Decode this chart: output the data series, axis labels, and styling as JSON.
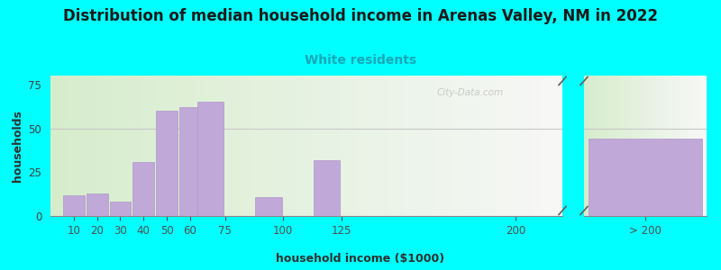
{
  "title": "Distribution of median household income in Arenas Valley, NM in 2022",
  "subtitle": "White residents",
  "xlabel": "household income ($1000)",
  "ylabel": "households",
  "background_color": "#00FFFF",
  "bar_color": "#c0a8d8",
  "bar_edge_color": "#b098c8",
  "title_fontsize": 12,
  "subtitle_fontsize": 10,
  "subtitle_color": "#18a8b8",
  "label_fontsize": 9,
  "tick_fontsize": 8.5,
  "ylim": [
    0,
    80
  ],
  "yticks": [
    0,
    25,
    50,
    75
  ],
  "categories": [
    "10",
    "20",
    "30",
    "40",
    "50",
    "60",
    "75",
    "100",
    "125",
    "200",
    "> 200"
  ],
  "values": [
    12,
    13,
    8,
    31,
    60,
    62,
    65,
    11,
    32,
    0,
    44
  ],
  "watermark": "City-Data.com"
}
